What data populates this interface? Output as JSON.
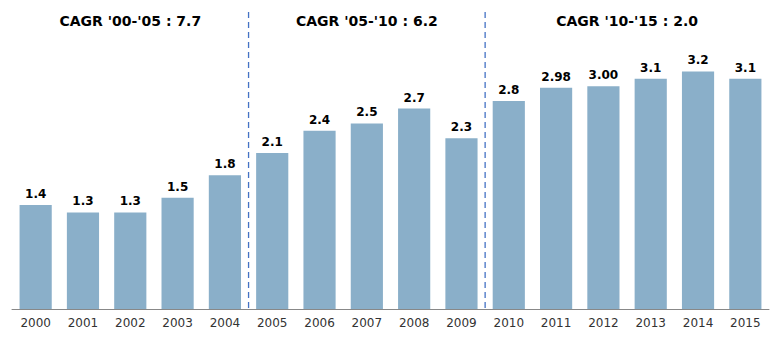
{
  "chart_data": {
    "type": "bar",
    "categories": [
      "2000",
      "2001",
      "2002",
      "2003",
      "2004",
      "2005",
      "2006",
      "2007",
      "2008",
      "2009",
      "2010",
      "2011",
      "2012",
      "2013",
      "2014",
      "2015"
    ],
    "values": [
      1.4,
      1.3,
      1.3,
      1.5,
      1.8,
      2.1,
      2.4,
      2.5,
      2.7,
      2.3,
      2.8,
      2.98,
      3.0,
      3.1,
      3.2,
      3.1
    ],
    "value_labels": [
      "1.4",
      "1.3",
      "1.3",
      "1.5",
      "1.8",
      "2.1",
      "2.4",
      "2.5",
      "2.7",
      "2.3",
      "2.8",
      "2.98",
      "3.00",
      "3.1",
      "3.2",
      "3.1"
    ],
    "data_labels": true,
    "color": "#8aafc9",
    "ylim": [
      0,
      4.0
    ],
    "grid": false,
    "tick_labels": "x",
    "annotations": [
      "CAGR '00-'05 : 7.7",
      "CAGR '05-'10 : 6.2",
      "CAGR '10-'15 : 2.0"
    ],
    "dividers": [
      {
        "between": [
          "2004",
          "2005"
        ],
        "color": "#4472c4",
        "line_style": "dashed"
      },
      {
        "between": [
          "2009",
          "2010"
        ],
        "color": "#4472c4",
        "line_style": "dashed"
      }
    ]
  }
}
